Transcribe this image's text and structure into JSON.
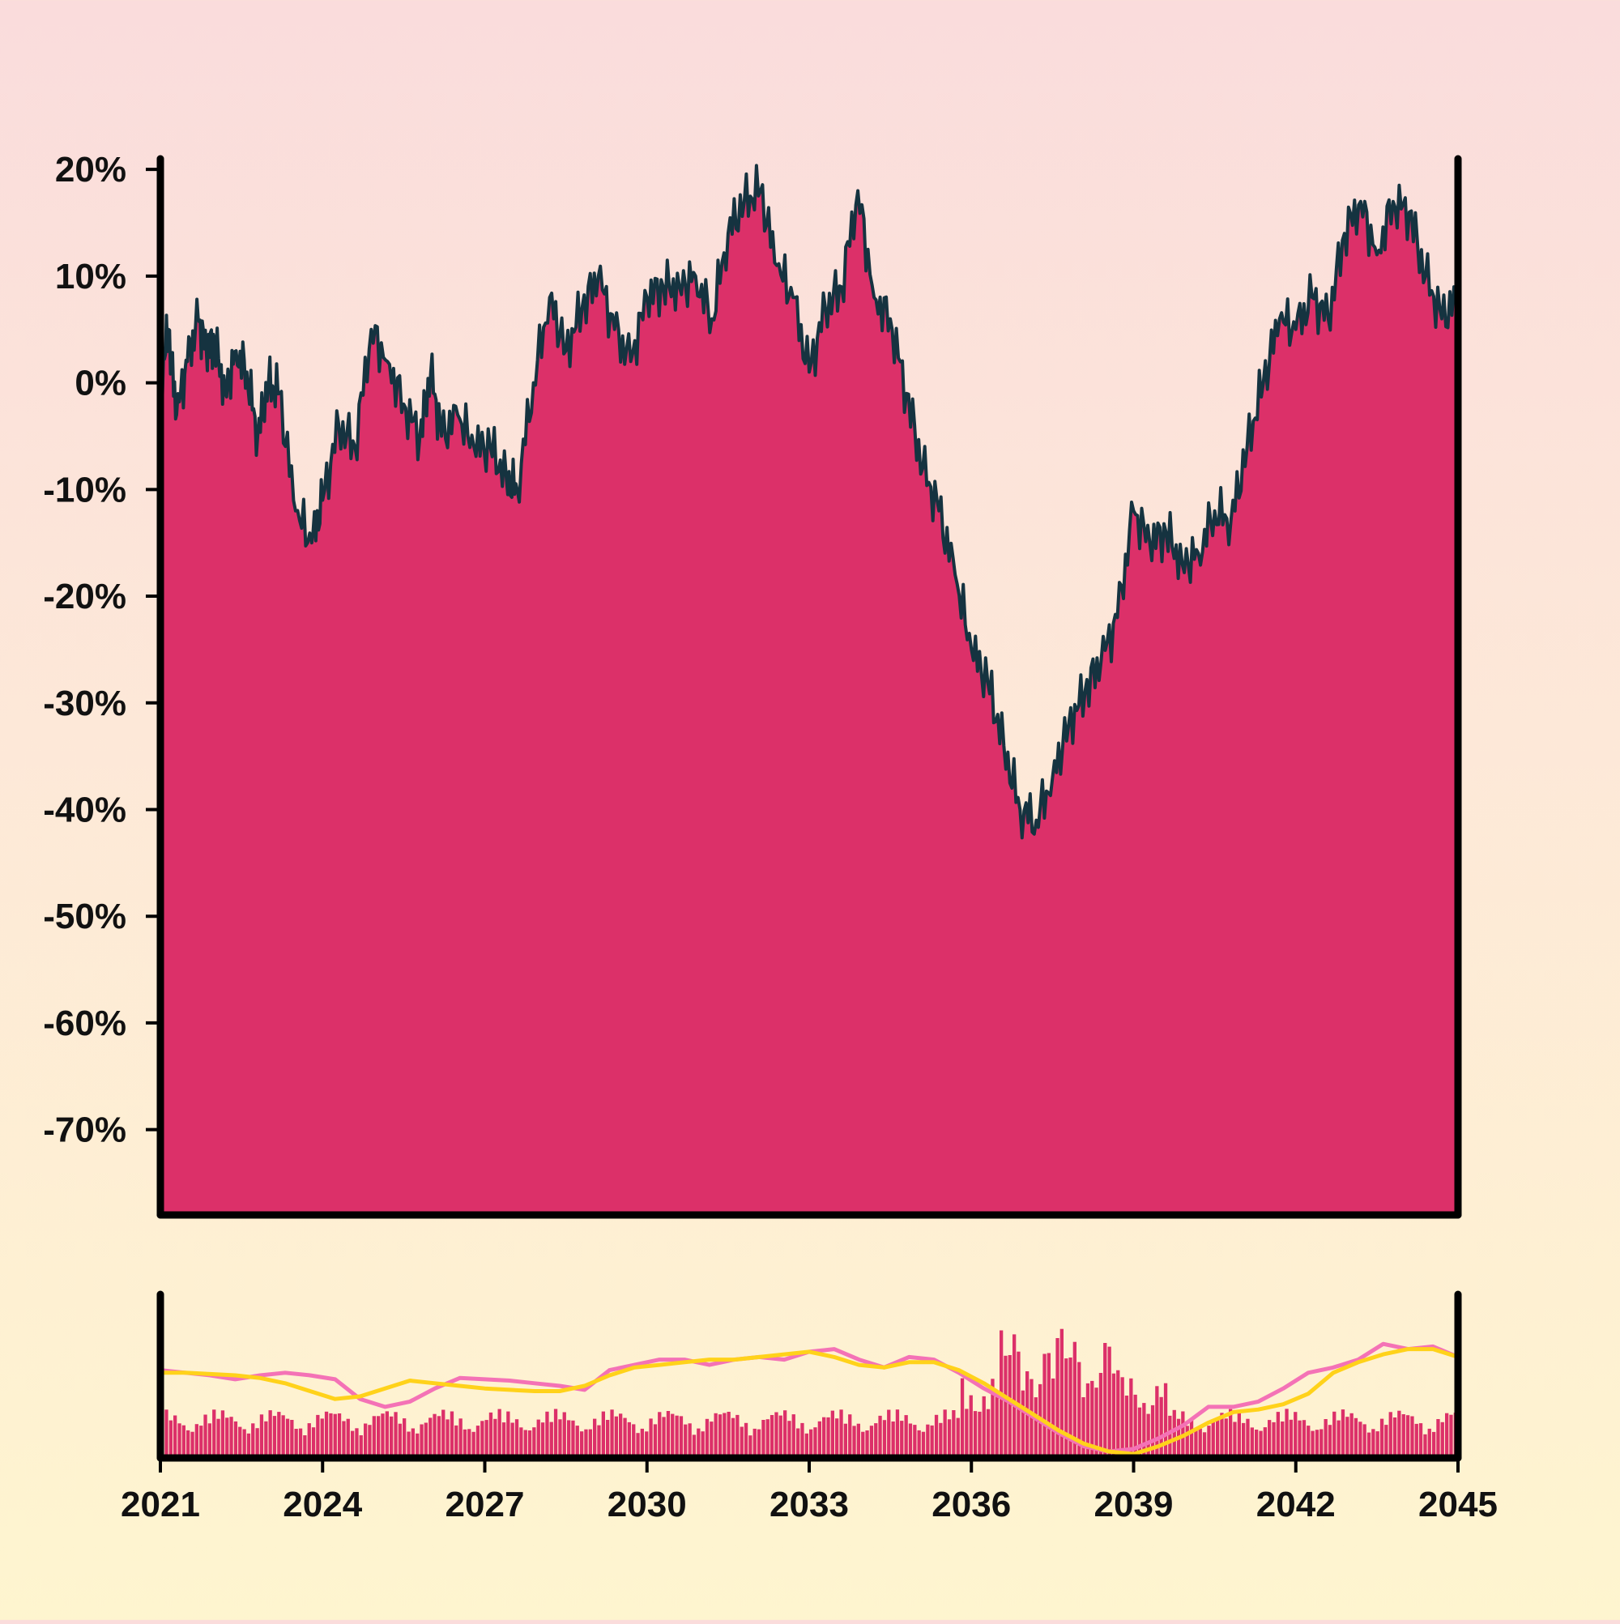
{
  "chart_data": {
    "type": "area",
    "title": "",
    "xlabel": "",
    "ylabel": "",
    "x_range": [
      2021,
      2045
    ],
    "ylim": [
      -78,
      21
    ],
    "y_ticks": [
      20,
      10,
      0,
      -10,
      -20,
      -30,
      -40,
      -50,
      -60,
      -70
    ],
    "y_tick_labels": [
      "20%",
      "10%",
      "0%",
      "-10%",
      "-20%",
      "-30%",
      "-40%",
      "-50%",
      "-60%",
      "-70%"
    ],
    "x_ticks": [
      2021,
      2024,
      2027,
      2030,
      2033,
      2036,
      2039,
      2042,
      2045
    ],
    "x_tick_labels": [
      "2021",
      "2024",
      "2027",
      "2030",
      "2033",
      "2036",
      "2039",
      "2042",
      "2045"
    ],
    "grid": false,
    "series": [
      {
        "role": "main-area",
        "x": [
          2021.0,
          2021.15,
          2021.3,
          2021.5,
          2021.7,
          2021.85,
          2022.0,
          2022.2,
          2022.4,
          2022.6,
          2022.8,
          2023.0,
          2023.2,
          2023.5,
          2023.8,
          2024.0,
          2024.3,
          2024.6,
          2024.9,
          2025.2,
          2025.5,
          2025.8,
          2026.0,
          2026.2,
          2026.5,
          2026.8,
          2027.1,
          2027.4,
          2027.6,
          2027.9,
          2028.2,
          2028.5,
          2028.8,
          2029.1,
          2029.4,
          2029.7,
          2030.0,
          2030.3,
          2030.6,
          2030.9,
          2031.2,
          2031.5,
          2031.8,
          2032.1,
          2032.4,
          2032.7,
          2033.0,
          2033.3,
          2033.6,
          2033.9,
          2034.2,
          2034.5,
          2034.8,
          2035.1,
          2035.4,
          2035.7,
          2036.0,
          2036.3,
          2036.6,
          2036.9,
          2037.2,
          2037.5,
          2037.8,
          2038.1,
          2038.4,
          2038.7,
          2039.0,
          2039.3,
          2039.6,
          2039.9,
          2040.2,
          2040.5,
          2040.8,
          2041.1,
          2041.4,
          2041.7,
          2042.0,
          2042.3,
          2042.6,
          2042.9,
          2043.2,
          2043.5,
          2043.8,
          2044.1,
          2044.4,
          2044.7,
          2045.0
        ],
        "values": [
          0,
          5,
          -3,
          2,
          6,
          3,
          4,
          -1,
          3,
          1,
          -5,
          0,
          -1,
          -12,
          -15,
          -11,
          -4,
          -6,
          5,
          2,
          -2,
          -5,
          1,
          -5,
          -3,
          -6,
          -6,
          -9,
          -10,
          0,
          8,
          3,
          7,
          10,
          5,
          2,
          8,
          9,
          9,
          10,
          6,
          14,
          17,
          18,
          11,
          8,
          1,
          7,
          9,
          18,
          8,
          6,
          -1,
          -8,
          -12,
          -18,
          -25,
          -28,
          -34,
          -40,
          -41,
          -37,
          -32,
          -29,
          -26,
          -22,
          -12,
          -15,
          -14,
          -17,
          -16,
          -12,
          -13,
          -6,
          0,
          6,
          5,
          8,
          6,
          14,
          17,
          12,
          17,
          16,
          10,
          6,
          8
        ]
      }
    ],
    "lower_panel": {
      "type": "bar+line",
      "bar_color": "#dc3069",
      "lines": [
        {
          "color": "#f472b6",
          "values": [
            0.62,
            0.6,
            0.58,
            0.55,
            0.58,
            0.6,
            0.58,
            0.55,
            0.4,
            0.34,
            0.38,
            0.48,
            0.56,
            0.55,
            0.54,
            0.52,
            0.5,
            0.47,
            0.62,
            0.66,
            0.7,
            0.7,
            0.66,
            0.7,
            0.72,
            0.7,
            0.76,
            0.78,
            0.7,
            0.64,
            0.72,
            0.7,
            0.6,
            0.48,
            0.38,
            0.26,
            0.14,
            0.04,
            0.0,
            0.02,
            0.1,
            0.2,
            0.34,
            0.34,
            0.38,
            0.48,
            0.6,
            0.64,
            0.7,
            0.82,
            0.78,
            0.8,
            0.72
          ]
        },
        {
          "color": "#ffd21a",
          "values": [
            0.6,
            0.6,
            0.59,
            0.58,
            0.56,
            0.52,
            0.46,
            0.4,
            0.42,
            0.48,
            0.54,
            0.52,
            0.5,
            0.48,
            0.47,
            0.46,
            0.46,
            0.5,
            0.58,
            0.64,
            0.66,
            0.68,
            0.7,
            0.7,
            0.72,
            0.74,
            0.76,
            0.72,
            0.66,
            0.64,
            0.68,
            0.68,
            0.62,
            0.52,
            0.4,
            0.28,
            0.16,
            0.06,
            0.0,
            -0.02,
            0.04,
            0.12,
            0.22,
            0.3,
            0.32,
            0.36,
            0.44,
            0.6,
            0.68,
            0.74,
            0.78,
            0.78,
            0.72
          ]
        }
      ]
    },
    "colors": {
      "area_fill": "#dc3069",
      "area_line": "#153340",
      "axis": "#000000"
    }
  }
}
